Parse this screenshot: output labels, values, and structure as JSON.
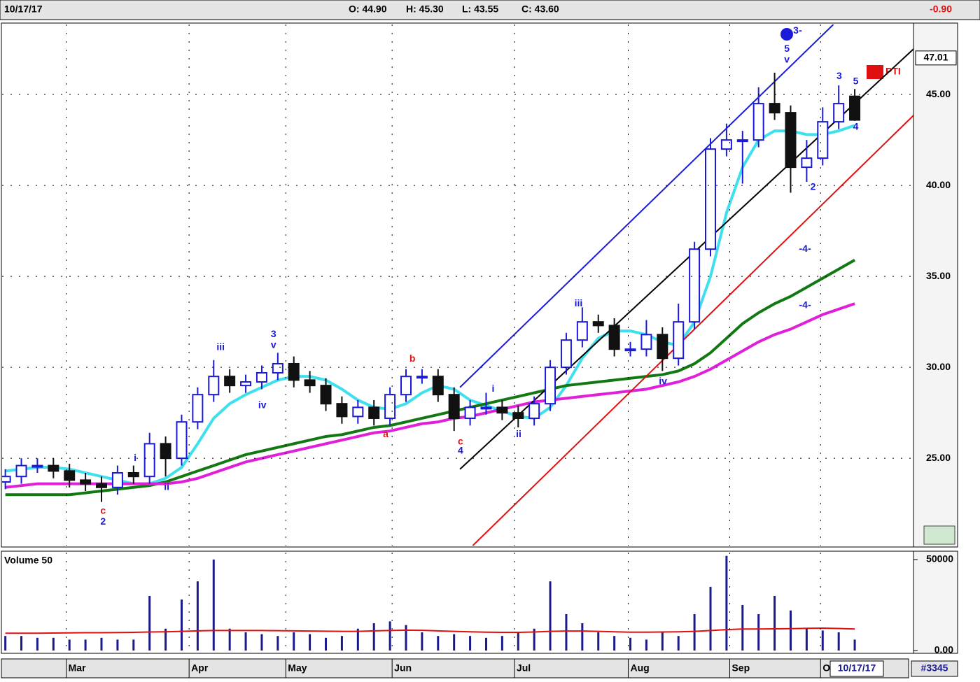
{
  "header": {
    "date": "10/17/17",
    "open": "O: 44.90",
    "high": "H: 45.30",
    "low": "L: 43.55",
    "close": "C: 43.60",
    "change": "-0.90"
  },
  "footer": {
    "date": "10/17/17",
    "id": "#3345"
  },
  "chart_data": {
    "type": "candlestick",
    "badge": "PTI",
    "price_marker": 47.01,
    "xlim": [
      0,
      171
    ],
    "xticks": [
      {
        "value": 12.4,
        "label": "Mar"
      },
      {
        "value": 35.4,
        "label": "Apr"
      },
      {
        "value": 53.5,
        "label": "May"
      },
      {
        "value": 73.4,
        "label": "Jun"
      },
      {
        "value": 96.3,
        "label": "Jul"
      },
      {
        "value": 117.6,
        "label": "Aug"
      },
      {
        "value": 136.6,
        "label": "Sep"
      },
      {
        "value": 153.6,
        "label": "O"
      }
    ],
    "ylim": [
      20.2,
      48.85
    ],
    "yticks": [
      {
        "value": 25,
        "label": "25.00"
      },
      {
        "value": 30,
        "label": "30.00"
      },
      {
        "value": 35,
        "label": "35.00"
      },
      {
        "value": 40,
        "label": "40.00"
      },
      {
        "value": 45,
        "label": "45.00"
      }
    ],
    "grid": true,
    "up_color": "#1a1ad8",
    "down_color": "#111111",
    "x": [
      1,
      4,
      7,
      10,
      13,
      16,
      19,
      22,
      25,
      28,
      31,
      34,
      37,
      40,
      43,
      46,
      49,
      52,
      55,
      58,
      61,
      64,
      67,
      70,
      73,
      76,
      79,
      82,
      85,
      88,
      91,
      94,
      97,
      100,
      103,
      106,
      109,
      112,
      115,
      118,
      121,
      124,
      127,
      130,
      133,
      136,
      139,
      142,
      145,
      148,
      151,
      154,
      157,
      160
    ],
    "open": [
      23.7,
      24.0,
      24.6,
      24.6,
      24.3,
      23.8,
      23.6,
      23.4,
      24.2,
      24.0,
      25.8,
      25.0,
      27.0,
      28.5,
      29.5,
      29.0,
      29.2,
      29.7,
      30.2,
      29.3,
      29.0,
      28.0,
      27.3,
      27.8,
      27.2,
      28.5,
      29.5,
      29.5,
      28.5,
      27.2,
      27.8,
      27.8,
      27.5,
      27.2,
      28.0,
      30.0,
      31.5,
      32.5,
      32.3,
      31.0,
      31.0,
      31.8,
      30.5,
      32.5,
      36.5,
      42.0,
      42.5,
      42.5,
      44.5,
      44.0,
      41.0,
      41.5,
      43.5,
      44.9
    ],
    "high": [
      24.4,
      25.0,
      25.0,
      25.0,
      24.7,
      24.2,
      24.0,
      24.6,
      24.6,
      26.4,
      26.2,
      27.4,
      28.9,
      30.4,
      29.9,
      29.6,
      30.1,
      30.8,
      30.6,
      29.8,
      29.4,
      28.4,
      28.2,
      28.2,
      28.9,
      29.9,
      29.9,
      29.9,
      28.9,
      28.2,
      28.6,
      28.2,
      27.9,
      28.4,
      30.4,
      31.9,
      33.3,
      32.9,
      32.7,
      31.4,
      32.6,
      32.2,
      33.5,
      36.9,
      42.6,
      43.4,
      43.0,
      45.4,
      46.2,
      44.4,
      42.5,
      44.3,
      45.5,
      45.3
    ],
    "low": [
      23.3,
      23.6,
      24.2,
      23.9,
      23.4,
      23.2,
      22.6,
      23.0,
      23.6,
      23.6,
      24.0,
      24.6,
      26.6,
      28.1,
      28.6,
      28.6,
      28.8,
      29.3,
      28.9,
      28.6,
      27.6,
      26.9,
      26.9,
      26.8,
      26.8,
      28.1,
      29.1,
      28.1,
      26.5,
      26.8,
      27.4,
      27.1,
      26.7,
      26.8,
      27.6,
      29.6,
      31.1,
      31.9,
      30.6,
      30.6,
      30.6,
      29.8,
      30.1,
      32.1,
      36.1,
      41.6,
      40.1,
      42.1,
      43.6,
      39.6,
      40.2,
      41.1,
      43.1,
      43.55
    ],
    "close": [
      24.0,
      24.6,
      24.6,
      24.3,
      23.8,
      23.6,
      23.4,
      24.2,
      24.0,
      25.8,
      25.0,
      27.0,
      28.5,
      29.5,
      29.0,
      29.2,
      29.7,
      30.2,
      29.3,
      29.0,
      28.0,
      27.3,
      27.8,
      27.2,
      28.5,
      29.5,
      29.5,
      28.5,
      27.2,
      27.8,
      27.8,
      27.5,
      27.2,
      28.0,
      30.0,
      31.5,
      32.5,
      32.3,
      31.0,
      31.0,
      31.8,
      30.5,
      32.5,
      36.5,
      42.0,
      42.5,
      42.5,
      44.5,
      44.0,
      41.0,
      41.5,
      43.5,
      44.5,
      43.6
    ],
    "lines": [
      {
        "color": "#3ee0ee",
        "values": [
          24.3,
          24.4,
          24.5,
          24.5,
          24.4,
          24.2,
          24.0,
          23.8,
          23.6,
          23.6,
          23.9,
          24.5,
          25.8,
          27.2,
          28.0,
          28.5,
          28.9,
          29.3,
          29.5,
          29.5,
          29.3,
          28.8,
          28.2,
          27.8,
          27.7,
          28.0,
          28.6,
          29.0,
          28.8,
          28.2,
          27.9,
          27.6,
          27.3,
          27.2,
          27.8,
          29.0,
          30.5,
          31.6,
          32.0,
          32.0,
          31.8,
          31.4,
          31.2,
          32.5,
          35.0,
          38.5,
          41.0,
          42.5,
          43.0,
          43.0,
          42.8,
          42.8,
          43.0,
          43.3
        ]
      },
      {
        "color": "#127812",
        "values": [
          23.0,
          23.0,
          23.0,
          23.0,
          23.0,
          23.1,
          23.2,
          23.3,
          23.4,
          23.5,
          23.7,
          24.0,
          24.3,
          24.6,
          24.9,
          25.2,
          25.4,
          25.6,
          25.8,
          26.0,
          26.2,
          26.3,
          26.5,
          26.7,
          26.8,
          27.0,
          27.2,
          27.4,
          27.6,
          27.8,
          28.0,
          28.2,
          28.4,
          28.6,
          28.8,
          29.0,
          29.1,
          29.2,
          29.3,
          29.4,
          29.5,
          29.6,
          29.8,
          30.2,
          30.8,
          31.6,
          32.4,
          33.0,
          33.5,
          33.9,
          34.4,
          34.9,
          35.4,
          35.9
        ]
      },
      {
        "color": "#e020d8",
        "values": [
          23.4,
          23.5,
          23.6,
          23.6,
          23.6,
          23.6,
          23.6,
          23.6,
          23.6,
          23.6,
          23.6,
          23.7,
          23.9,
          24.2,
          24.5,
          24.8,
          25.0,
          25.2,
          25.4,
          25.6,
          25.8,
          26.0,
          26.2,
          26.4,
          26.5,
          26.7,
          26.9,
          27.0,
          27.2,
          27.3,
          27.5,
          27.7,
          27.9,
          28.1,
          28.2,
          28.3,
          28.4,
          28.5,
          28.6,
          28.7,
          28.8,
          29.0,
          29.2,
          29.5,
          29.9,
          30.4,
          30.9,
          31.4,
          31.8,
          32.1,
          32.5,
          32.9,
          33.2,
          33.5
        ]
      }
    ],
    "trendlines": [
      {
        "color": "#1a1ad8",
        "x": [
          86.1,
          156
        ],
        "y": [
          28.9,
          48.85
        ]
      },
      {
        "color": "#000000",
        "x": [
          86.1,
          171
        ],
        "y": [
          24.4,
          47.5
        ]
      },
      {
        "color": "#e01010",
        "x": [
          88.5,
          171
        ],
        "y": [
          20.2,
          43.85
        ]
      }
    ],
    "annotations": [
      {
        "text": "c",
        "x": 19.3,
        "y": 22.1,
        "color": "#e01010"
      },
      {
        "text": "2",
        "x": 19.3,
        "y": 21.5,
        "color": "#1a1ad8"
      },
      {
        "text": "i",
        "x": 25.3,
        "y": 25.0,
        "color": "#1a1ad8"
      },
      {
        "text": "ii",
        "x": 31.2,
        "y": 23.4,
        "color": "#1a1ad8"
      },
      {
        "text": "iii",
        "x": 41.3,
        "y": 31.1,
        "color": "#1a1ad8"
      },
      {
        "text": "3",
        "x": 51.2,
        "y": 31.8,
        "color": "#1a1ad8"
      },
      {
        "text": "v",
        "x": 51.2,
        "y": 31.2,
        "color": "#1a1ad8"
      },
      {
        "text": "iv",
        "x": 49.1,
        "y": 27.9,
        "color": "#1a1ad8"
      },
      {
        "text": "a",
        "x": 72.2,
        "y": 26.3,
        "color": "#e01010"
      },
      {
        "text": "b",
        "x": 77.2,
        "y": 30.45,
        "color": "#e01010"
      },
      {
        "text": "c",
        "x": 86.2,
        "y": 25.9,
        "color": "#e01010"
      },
      {
        "text": "4",
        "x": 86.2,
        "y": 25.4,
        "color": "#1a1ad8"
      },
      {
        "text": "i",
        "x": 92.3,
        "y": 28.8,
        "color": "#1a1ad8"
      },
      {
        "text": "ii",
        "x": 97.1,
        "y": 26.3,
        "color": "#1a1ad8"
      },
      {
        "text": "iii",
        "x": 108.3,
        "y": 33.5,
        "color": "#1a1ad8"
      },
      {
        "text": "iv",
        "x": 124.1,
        "y": 29.2,
        "color": "#1a1ad8"
      },
      {
        "text": "5",
        "x": 147.3,
        "y": 47.5,
        "color": "#1a1ad8"
      },
      {
        "text": "v",
        "x": 147.3,
        "y": 46.9,
        "color": "#1a1ad8"
      },
      {
        "text": "3-",
        "x": 149.3,
        "y": 48.5,
        "color": "#1a1ad8"
      },
      {
        "text": "3",
        "x": 157.1,
        "y": 46.0,
        "color": "#1a1ad8"
      },
      {
        "text": "5",
        "x": 160.2,
        "y": 45.7,
        "color": "#1a1ad8"
      },
      {
        "text": "4",
        "x": 160.2,
        "y": 43.2,
        "color": "#1a1ad8"
      },
      {
        "text": "2",
        "x": 152.2,
        "y": 39.9,
        "color": "#1a1ad8"
      },
      {
        "text": "-4-",
        "x": 150.7,
        "y": 36.5,
        "color": "#1a1ad8"
      },
      {
        "text": "-4-",
        "x": 150.7,
        "y": 33.4,
        "color": "#1a1ad8"
      }
    ],
    "volume": {
      "title": "Volume 50",
      "ylim": [
        0,
        53800
      ],
      "yticks": [
        {
          "value": 0,
          "label": "0.00"
        },
        50000
      ],
      "color": "#1a1a8a",
      "ma_color": "#e01010",
      "values": [
        8000,
        8000,
        7000,
        7000,
        6000,
        6000,
        7000,
        6000,
        6000,
        30000,
        12000,
        28000,
        38000,
        50000,
        12000,
        10000,
        9000,
        8000,
        10000,
        9000,
        7000,
        8000,
        12000,
        15000,
        16000,
        14000,
        10000,
        8000,
        9000,
        8000,
        7000,
        8000,
        10000,
        12000,
        38000,
        20000,
        15000,
        10000,
        8000,
        7000,
        6000,
        10000,
        8000,
        20000,
        35000,
        52000,
        25000,
        20000,
        30000,
        22000,
        12000,
        11000,
        10000,
        6000
      ],
      "ma": [
        9500,
        9500,
        9500,
        9600,
        9700,
        9800,
        9800,
        9900,
        10000,
        10200,
        10300,
        10500,
        10800,
        11000,
        11000,
        11000,
        11000,
        10900,
        10800,
        10700,
        10600,
        10500,
        10500,
        10800,
        11000,
        11200,
        11100,
        10800,
        10500,
        10300,
        10100,
        10000,
        10000,
        10200,
        10500,
        10700,
        10700,
        10500,
        10300,
        10100,
        10100,
        10200,
        10300,
        10500,
        11000,
        11500,
        11800,
        11800,
        11900,
        12000,
        12200,
        12300,
        12100,
        11800
      ]
    }
  }
}
